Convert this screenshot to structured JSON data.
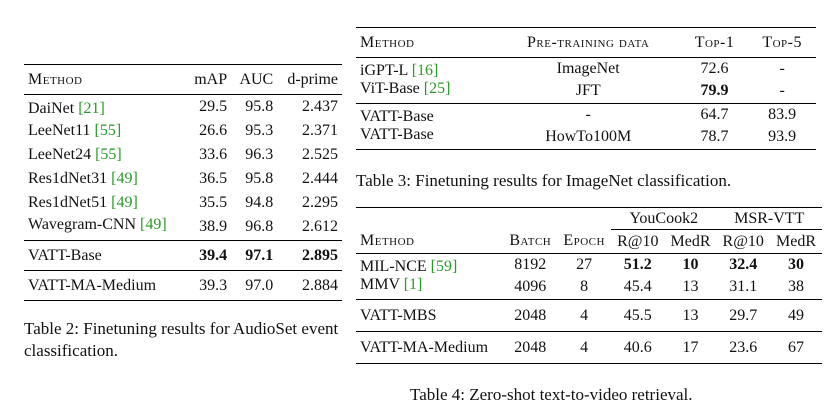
{
  "table2": {
    "headers": [
      "Method",
      "mAP",
      "AUC",
      "d-prime"
    ],
    "rows": [
      {
        "name": "DaiNet",
        "ref": "[21]",
        "map": "29.5",
        "auc": "95.8",
        "dp": "2.437"
      },
      {
        "name": "LeeNet11",
        "ref": "[55]",
        "map": "26.6",
        "auc": "95.3",
        "dp": "2.371"
      },
      {
        "name": "LeeNet24",
        "ref": "[55]",
        "map": "33.6",
        "auc": "96.3",
        "dp": "2.525"
      },
      {
        "name": "Res1dNet31",
        "ref": "[49]",
        "map": "36.5",
        "auc": "95.8",
        "dp": "2.444"
      },
      {
        "name": "Res1dNet51",
        "ref": "[49]",
        "map": "35.5",
        "auc": "94.8",
        "dp": "2.295"
      },
      {
        "name": "Wavegram-CNN",
        "ref": "[49]",
        "map": "38.9",
        "auc": "96.8",
        "dp": "2.612"
      }
    ],
    "vatt_base": {
      "name": "VATT-Base",
      "map": "39.4",
      "auc": "97.1",
      "dp": "2.895"
    },
    "vatt_ma": {
      "name": "VATT-MA-Medium",
      "map": "39.3",
      "auc": "97.0",
      "dp": "2.884"
    },
    "caption": "Table 2: Finetuning results for AudioSet event classification."
  },
  "table3": {
    "headers": [
      "Method",
      "Pre-training data",
      "Top-1",
      "Top-5"
    ],
    "rows_a": [
      {
        "name": "iGPT-L",
        "ref": "[16]",
        "data": "ImageNet",
        "top1": "72.6",
        "top5": "-"
      },
      {
        "name": "ViT-Base",
        "ref": "[25]",
        "data": "JFT",
        "top1": "79.9",
        "top5": "-"
      }
    ],
    "rows_b": [
      {
        "name": "VATT-Base",
        "data": "-",
        "top1": "64.7",
        "top5": "83.9"
      },
      {
        "name": "VATT-Base",
        "data": "HowTo100M",
        "top1": "78.7",
        "top5": "93.9"
      }
    ],
    "caption": "Table 3: Finetuning results for ImageNet classification."
  },
  "table4": {
    "group_headers": [
      "YouCook2",
      "MSR-VTT"
    ],
    "headers": [
      "Method",
      "Batch",
      "Epoch",
      "R@10",
      "MedR",
      "R@10",
      "MedR"
    ],
    "rows_a": [
      {
        "name": "MIL-NCE",
        "ref": "[59]",
        "batch": "8192",
        "epoch": "27",
        "yr": "51.2",
        "ym": "10",
        "mr": "32.4",
        "mm": "30"
      },
      {
        "name": "MMV",
        "ref": "[1]",
        "batch": "4096",
        "epoch": "8",
        "yr": "45.4",
        "ym": "13",
        "mr": "31.1",
        "mm": "38"
      }
    ],
    "row_mbs": {
      "name": "VATT-MBS",
      "batch": "2048",
      "epoch": "4",
      "yr": "45.5",
      "ym": "13",
      "mr": "29.7",
      "mm": "49"
    },
    "row_ma": {
      "name": "VATT-MA-Medium",
      "batch": "2048",
      "epoch": "4",
      "yr": "40.6",
      "ym": "17",
      "mr": "23.6",
      "mm": "67"
    },
    "caption": "Table 4: Zero-shot text-to-video retrieval."
  }
}
